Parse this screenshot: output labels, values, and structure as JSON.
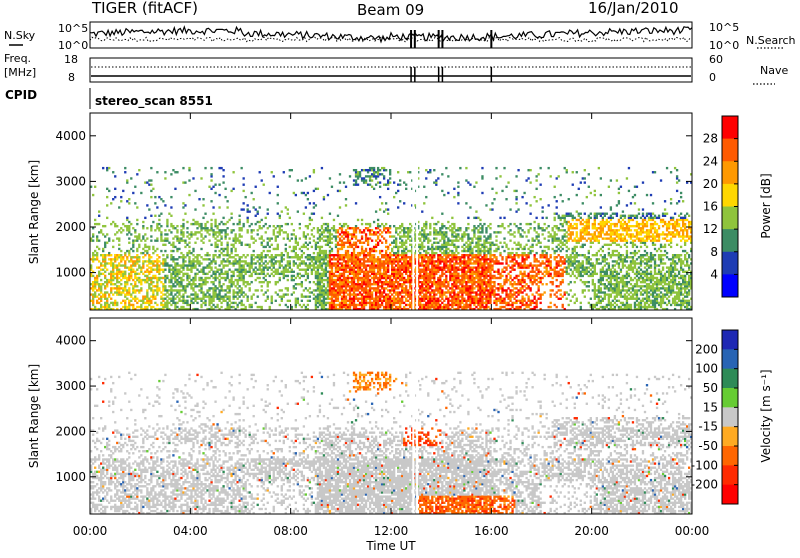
{
  "header": {
    "site": "TIGER (fitACF)",
    "beam": "Beam 09",
    "date": "16/Jan/2010"
  },
  "top_panels": {
    "nsky_label": "N.Sky",
    "nsky_ticks": [
      "10^5",
      "10^0"
    ],
    "nsky_right_ticks": [
      "10^5",
      "10^0"
    ],
    "nsearch_label": "N.Search",
    "freq_label": "Freq.",
    "freq_unit": "[MHz]",
    "freq_ticks": [
      "18",
      "8"
    ],
    "nave_label": "Nave",
    "nave_ticks": [
      "60",
      "0"
    ],
    "cpid_label": "CPID",
    "cpid_value": "stereo_scan 8551"
  },
  "chart_data": [
    {
      "type": "heatmap",
      "name": "power",
      "ylabel": "Slant Range [km]",
      "yticks": [
        "4000",
        "3000",
        "2000",
        "1000"
      ],
      "ylim": [
        180,
        4500
      ],
      "colorbar_label": "Power [dB]",
      "colorbar_ticks": [
        "28",
        "24",
        "20",
        "16",
        "12",
        "8",
        "4"
      ],
      "colorbar_colors": [
        "#ff0000",
        "#ff5a00",
        "#ff9900",
        "#ffd700",
        "#8fc43c",
        "#3c8c64",
        "#1e3cb4",
        "#0000ff"
      ]
    },
    {
      "type": "heatmap",
      "name": "velocity",
      "ylabel": "Slant Range [km]",
      "yticks": [
        "4000",
        "3000",
        "2000",
        "1000"
      ],
      "ylim": [
        180,
        4500
      ],
      "colorbar_label": "Velocity [m s⁻¹]",
      "colorbar_ticks": [
        "200",
        "100",
        "50",
        "15",
        "-15",
        "-50",
        "-100",
        "-200"
      ],
      "colorbar_colors": [
        "#1e28b4",
        "#2864b4",
        "#2e8b57",
        "#66cc33",
        "#c8c8c8",
        "#ffaa22",
        "#ff6600",
        "#ff2a00",
        "#ff0000"
      ]
    }
  ],
  "xaxis": {
    "ticks": [
      "00:00",
      "04:00",
      "08:00",
      "12:00",
      "16:00",
      "20:00",
      "00:00"
    ],
    "label": "Time UT"
  }
}
